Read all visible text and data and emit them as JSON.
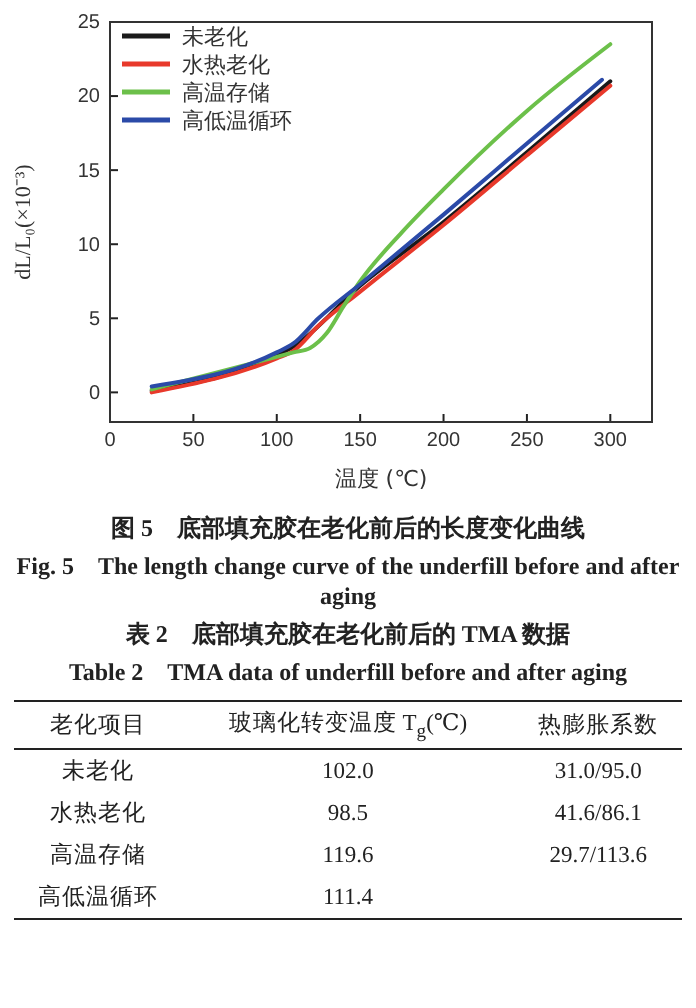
{
  "chart_data": {
    "type": "line",
    "xlabel": "温度 (℃)",
    "ylabel": "dL/L₀(×10⁻³)",
    "xlim": [
      0,
      325
    ],
    "xticks": [
      0,
      50,
      100,
      150,
      200,
      250,
      300
    ],
    "ylim": [
      -2,
      25
    ],
    "yticks": [
      0,
      5,
      10,
      15,
      20,
      25
    ],
    "legend": "top left",
    "grid": false,
    "marker": "none",
    "line_style": "solid",
    "series": [
      {
        "name": "未老化",
        "color": "#1a1a1a",
        "x": [
          25,
          100,
          110,
          150,
          200,
          250,
          300
        ],
        "values": [
          0.1,
          2.5,
          3.1,
          7.2,
          11.5,
          16.2,
          21.0
        ]
      },
      {
        "name": "水热老化",
        "color": "#e8392b",
        "x": [
          25,
          100,
          110,
          125,
          150,
          200,
          250,
          300
        ],
        "values": [
          0,
          2.3,
          2.8,
          4.5,
          6.8,
          11.3,
          16.0,
          20.7
        ]
      },
      {
        "name": "高温存储",
        "color": "#6cc04a",
        "x": [
          25,
          100,
          110,
          120,
          130,
          140,
          150,
          175,
          200,
          250,
          300
        ],
        "values": [
          0.2,
          2.4,
          2.7,
          3.0,
          4.0,
          5.8,
          7.5,
          10.8,
          13.7,
          19.0,
          23.5
        ]
      },
      {
        "name": "高低温循环",
        "color": "#2b4aa8",
        "x": [
          25,
          100,
          110,
          125,
          150,
          200,
          250,
          295
        ],
        "values": [
          0.4,
          2.7,
          3.3,
          5.0,
          7.3,
          12.0,
          16.8,
          21.1
        ]
      }
    ],
    "annotations": [
      "图 5　底部填充胶在老化前后的长度变化曲线",
      "Fig. 5　The length change curve of the underfill before and after aging",
      "表 2　底部填充胶在老化前后的 TMA 数据",
      "Table 2　TMA data of underfill before and after aging",
      "老化项目",
      "玻璃化转变温度 T$_{g}$(℃)",
      "热膨胀系数",
      "未老化",
      "102.0",
      "31.0/95.0",
      "水热老化",
      "98.5",
      "41.6/86.1",
      "高温存储",
      "119.6",
      "29.7/113.6",
      "高低温循环",
      "111.4"
    ]
  }
}
